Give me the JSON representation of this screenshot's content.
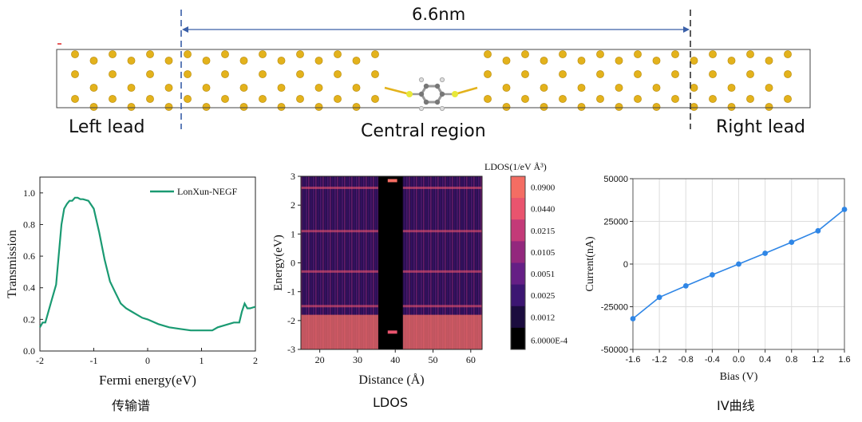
{
  "device": {
    "length_label": "6.6nm",
    "left_lead": "Left lead",
    "central_region": "Central region",
    "right_lead": "Right lead"
  },
  "captions": {
    "transmission": "传输谱",
    "ldos": "LDOS",
    "iv": "IV曲线"
  },
  "colors": {
    "gold": "#e3b21c",
    "transmission_line": "#1a9a72",
    "iv_line": "#2f86e6",
    "dashed_line": "#3a5fa8"
  },
  "chart_data": [
    {
      "type": "line",
      "xlabel": "Fermi energy(eV)",
      "ylabel": "Transmission",
      "xlim": [
        -2,
        2
      ],
      "ylim": [
        0,
        1.1
      ],
      "xticks": [
        "-2",
        "-1",
        "0",
        "1",
        "2"
      ],
      "yticks": [
        "0.0",
        "0.2",
        "0.4",
        "0.6",
        "0.8",
        "1.0"
      ],
      "series": [
        {
          "name": "LonXun-NEGF",
          "x": [
            -2.0,
            -1.95,
            -1.9,
            -1.8,
            -1.7,
            -1.6,
            -1.55,
            -1.5,
            -1.45,
            -1.4,
            -1.35,
            -1.3,
            -1.25,
            -1.2,
            -1.1,
            -1.0,
            -0.9,
            -0.8,
            -0.7,
            -0.6,
            -0.5,
            -0.4,
            -0.3,
            -0.2,
            -0.1,
            0.0,
            0.2,
            0.4,
            0.6,
            0.8,
            1.0,
            1.2,
            1.3,
            1.4,
            1.5,
            1.6,
            1.7,
            1.75,
            1.8,
            1.85,
            1.9,
            2.0
          ],
          "y": [
            0.15,
            0.18,
            0.18,
            0.3,
            0.42,
            0.8,
            0.9,
            0.93,
            0.95,
            0.95,
            0.97,
            0.97,
            0.96,
            0.96,
            0.95,
            0.9,
            0.75,
            0.58,
            0.44,
            0.37,
            0.3,
            0.27,
            0.25,
            0.23,
            0.21,
            0.2,
            0.17,
            0.15,
            0.14,
            0.13,
            0.13,
            0.13,
            0.15,
            0.16,
            0.17,
            0.18,
            0.18,
            0.25,
            0.3,
            0.27,
            0.27,
            0.28
          ]
        }
      ]
    },
    {
      "type": "heatmap",
      "xlabel": "Distance (Å)",
      "ylabel": "Energy(eV)",
      "xlim": [
        15,
        63
      ],
      "ylim": [
        -3,
        3
      ],
      "xticks": [
        "20",
        "30",
        "40",
        "50",
        "60"
      ],
      "yticks": [
        "3",
        "2",
        "1",
        "0",
        "-1",
        "-2",
        "-3"
      ],
      "colorbar_title": "LDOS(1/eV Å³)",
      "colorbar_labels": [
        "0.0900",
        "0.0440",
        "0.0215",
        "0.0105",
        "0.0051",
        "0.0025",
        "0.0012",
        "6.0000E-4"
      ],
      "colorbar_colors": [
        "#f46d63",
        "#e9546e",
        "#c33a78",
        "#93287d",
        "#651f85",
        "#3c1672",
        "#1b0c3e",
        "#000000"
      ]
    },
    {
      "type": "line",
      "xlabel": "Bias (V)",
      "ylabel": "Current(nA)",
      "xlim": [
        -1.6,
        1.6
      ],
      "ylim": [
        -50000,
        50000
      ],
      "xticks": [
        "-1.6",
        "-1.2",
        "-0.8",
        "-0.4",
        "0.0",
        "0.4",
        "0.8",
        "1.2",
        "1.6"
      ],
      "yticks": [
        "50000",
        "25000",
        "0",
        "-25000",
        "-50000"
      ],
      "series": [
        {
          "x": [
            -1.6,
            -1.2,
            -0.8,
            -0.4,
            0.0,
            0.4,
            0.8,
            1.2,
            1.6
          ],
          "y": [
            -32000,
            -19500,
            -12800,
            -6300,
            0,
            6300,
            12800,
            19500,
            32000
          ]
        }
      ]
    }
  ]
}
